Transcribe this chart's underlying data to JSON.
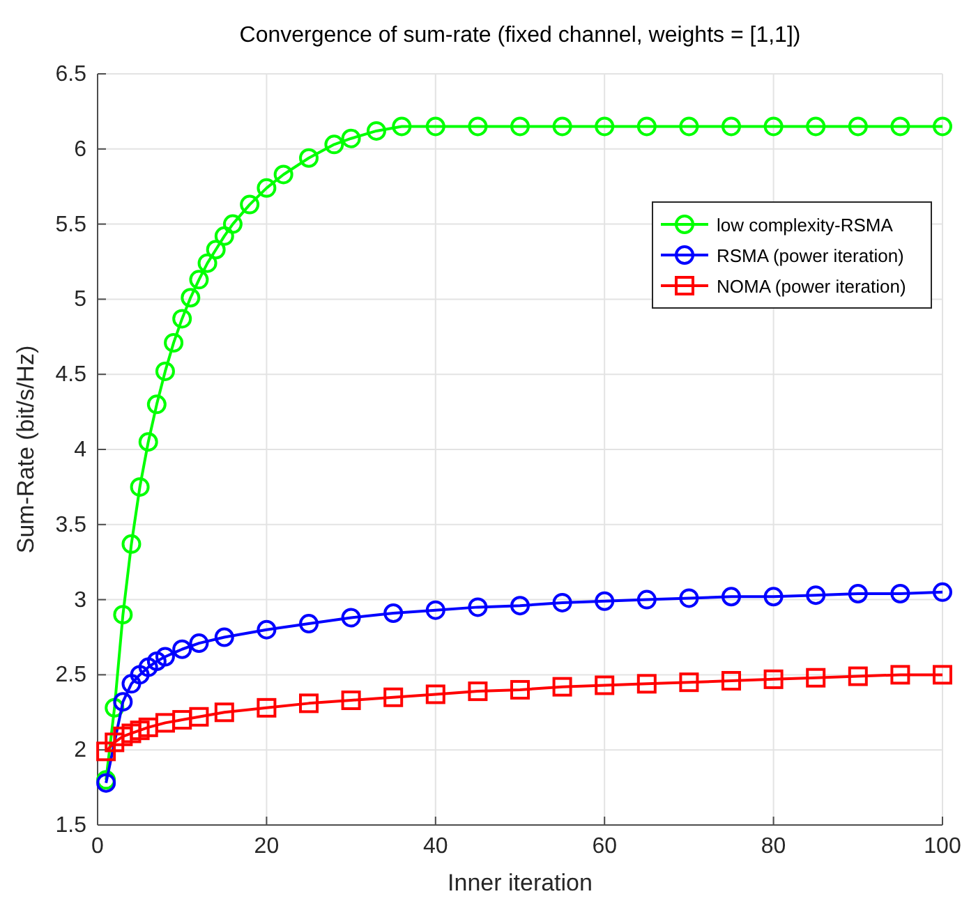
{
  "chart_data": {
    "type": "line",
    "title": "Convergence of sum-rate (fixed channel, weights = [1,1])",
    "xlabel": "Inner iteration",
    "ylabel": "Sum-Rate (bit/s/Hz)",
    "xlim": [
      0,
      100
    ],
    "xticks": [
      0,
      20,
      40,
      60,
      80,
      100
    ],
    "ylim": [
      1.5,
      6.5
    ],
    "yticks": [
      1.5,
      2,
      2.5,
      3,
      3.5,
      4,
      4.5,
      5,
      5.5,
      6,
      6.5
    ],
    "grid": true,
    "legend": "top right",
    "line_style": "solid",
    "series": [
      {
        "name": "low complexity-RSMA",
        "color": "#00ff00",
        "marker": "circle",
        "x": [
          1,
          2,
          3,
          4,
          5,
          6,
          7,
          8,
          9,
          10,
          11,
          12,
          13,
          14,
          15,
          16,
          18,
          20,
          22,
          25,
          28,
          30,
          33,
          36,
          40,
          45,
          50,
          55,
          60,
          65,
          70,
          75,
          80,
          85,
          90,
          95,
          100
        ],
        "values": [
          1.8,
          2.28,
          2.9,
          3.37,
          3.75,
          4.05,
          4.3,
          4.52,
          4.71,
          4.87,
          5.01,
          5.13,
          5.24,
          5.33,
          5.42,
          5.5,
          5.63,
          5.74,
          5.83,
          5.94,
          6.03,
          6.07,
          6.12,
          6.15,
          6.15,
          6.15,
          6.15,
          6.15,
          6.15,
          6.15,
          6.15,
          6.15,
          6.15,
          6.15,
          6.15,
          6.15,
          6.15
        ]
      },
      {
        "name": "RSMA (power iteration)",
        "color": "#0000ff",
        "marker": "circle",
        "x": [
          1,
          2,
          3,
          4,
          5,
          6,
          7,
          8,
          10,
          12,
          15,
          20,
          25,
          30,
          35,
          40,
          45,
          50,
          55,
          60,
          65,
          70,
          75,
          80,
          85,
          90,
          95,
          100
        ],
        "values": [
          1.78,
          null,
          2.32,
          2.44,
          2.5,
          2.55,
          2.59,
          2.62,
          2.67,
          2.71,
          2.75,
          2.8,
          2.84,
          2.88,
          2.91,
          2.93,
          2.95,
          2.96,
          2.98,
          2.99,
          3.0,
          3.01,
          3.02,
          3.02,
          3.03,
          3.04,
          3.04,
          3.05
        ]
      },
      {
        "name": "NOMA (power iteration)",
        "color": "#ff0000",
        "marker": "square",
        "x": [
          1,
          2,
          3,
          4,
          5,
          6,
          8,
          10,
          12,
          15,
          20,
          25,
          30,
          35,
          40,
          45,
          50,
          55,
          60,
          65,
          70,
          75,
          80,
          85,
          90,
          95,
          100
        ],
        "values": [
          1.99,
          2.05,
          2.09,
          2.11,
          2.13,
          2.15,
          2.18,
          2.2,
          2.22,
          2.25,
          2.28,
          2.31,
          2.33,
          2.35,
          2.37,
          2.39,
          2.4,
          2.42,
          2.43,
          2.44,
          2.45,
          2.46,
          2.47,
          2.48,
          2.49,
          2.5,
          2.5
        ]
      }
    ]
  }
}
